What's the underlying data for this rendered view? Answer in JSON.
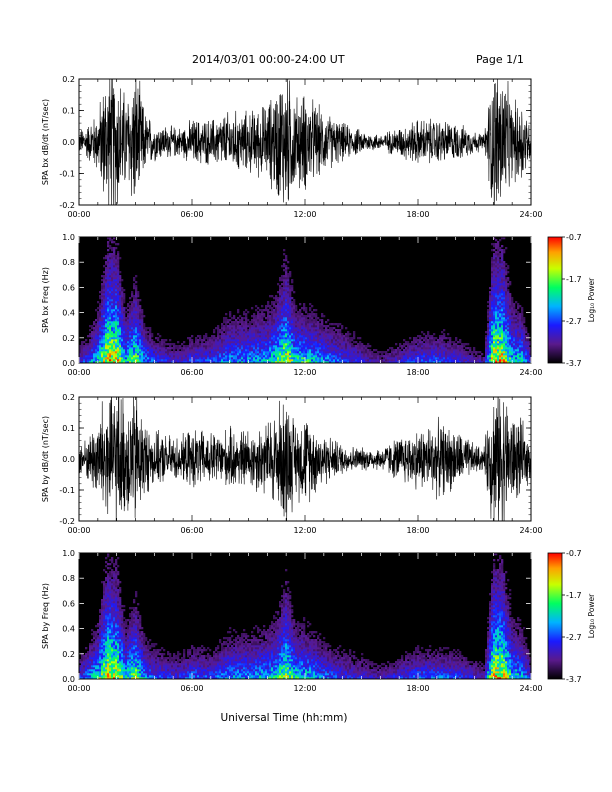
{
  "header": {
    "date_range": "2014/03/01   00:00-24:00 UT",
    "page": "Page 1/1"
  },
  "chart_data": [
    {
      "id": "bx-dbdt",
      "type": "line",
      "ylabel": "SPA bx dB/dt (nT/sec)",
      "xlabel": "",
      "xlim": [
        "00:00",
        "24:00"
      ],
      "ylim": [
        -0.2,
        0.2
      ],
      "x_ticks": [
        "00:00",
        "06:00",
        "12:00",
        "18:00",
        "24:00"
      ],
      "y_ticks": [
        "-0.2",
        "-0.1",
        "0.0",
        "0.1",
        "0.2"
      ],
      "amplitude_envelope": {
        "x_hours": [
          0,
          0.5,
          1.0,
          1.5,
          2.0,
          2.5,
          3.0,
          3.5,
          4.0,
          5.0,
          5.5,
          6.0,
          7.0,
          8.0,
          9.0,
          10.0,
          10.5,
          11.0,
          11.5,
          12.0,
          13.0,
          14.0,
          15.0,
          16.0,
          17.0,
          18.0,
          19.0,
          20.0,
          21.0,
          21.5,
          22.0,
          22.5,
          23.0,
          23.5,
          24.0
        ],
        "amplitude": [
          0.03,
          0.05,
          0.08,
          0.2,
          0.2,
          0.12,
          0.2,
          0.08,
          0.05,
          0.04,
          0.04,
          0.06,
          0.06,
          0.08,
          0.08,
          0.1,
          0.15,
          0.2,
          0.12,
          0.13,
          0.08,
          0.05,
          0.03,
          0.02,
          0.04,
          0.06,
          0.06,
          0.05,
          0.03,
          0.02,
          0.2,
          0.2,
          0.1,
          0.12,
          0.04
        ]
      }
    },
    {
      "id": "bx-spec",
      "type": "heatmap",
      "ylabel": "SPA bx Freq (Hz)",
      "xlabel": "",
      "xlim": [
        "00:00",
        "24:00"
      ],
      "ylim": [
        0,
        1.0
      ],
      "x_ticks": [
        "00:00",
        "06:00",
        "12:00",
        "18:00",
        "24:00"
      ],
      "y_ticks": [
        "0.0",
        "0.2",
        "0.4",
        "0.6",
        "0.8",
        "1.0"
      ],
      "colorbar": {
        "label": "Log₁₀ Power",
        "range": [
          -3.7,
          -0.7
        ],
        "ticks": [
          "-0.7",
          "-1.7",
          "-2.7",
          "-3.7"
        ]
      },
      "activity_profile": {
        "x_hours": [
          0,
          0.5,
          1.0,
          1.5,
          2.0,
          2.5,
          3.0,
          3.5,
          4.0,
          5.0,
          5.5,
          6.0,
          7.0,
          8.0,
          9.0,
          10.0,
          10.5,
          11.0,
          11.5,
          12.0,
          13.0,
          14.0,
          15.0,
          16.0,
          17.0,
          18.0,
          19.0,
          20.0,
          21.0,
          21.5,
          22.0,
          22.5,
          23.0,
          23.5,
          24.0
        ],
        "intensity": [
          0.3,
          0.45,
          0.6,
          0.95,
          0.95,
          0.6,
          0.8,
          0.5,
          0.4,
          0.3,
          0.3,
          0.4,
          0.4,
          0.5,
          0.5,
          0.55,
          0.7,
          0.85,
          0.65,
          0.65,
          0.5,
          0.4,
          0.3,
          0.2,
          0.3,
          0.4,
          0.4,
          0.35,
          0.25,
          0.2,
          0.95,
          0.95,
          0.6,
          0.6,
          0.3
        ],
        "max_freq_hz": [
          0.2,
          0.3,
          0.5,
          1.0,
          1.0,
          0.5,
          0.7,
          0.4,
          0.3,
          0.25,
          0.25,
          0.3,
          0.3,
          0.5,
          0.5,
          0.55,
          0.6,
          0.9,
          0.5,
          0.5,
          0.45,
          0.4,
          0.3,
          0.2,
          0.25,
          0.3,
          0.35,
          0.3,
          0.2,
          0.2,
          1.0,
          1.0,
          0.6,
          0.5,
          0.3
        ]
      }
    },
    {
      "id": "by-dbdt",
      "type": "line",
      "ylabel": "SPA by dB/dt (nT/sec)",
      "xlabel": "",
      "xlim": [
        "00:00",
        "24:00"
      ],
      "ylim": [
        -0.2,
        0.2
      ],
      "x_ticks": [
        "00:00",
        "06:00",
        "12:00",
        "18:00",
        "24:00"
      ],
      "y_ticks": [
        "-0.2",
        "-0.1",
        "0.0",
        "0.1",
        "0.2"
      ],
      "amplitude_envelope": {
        "x_hours": [
          0,
          0.5,
          1.0,
          1.5,
          2.0,
          2.5,
          3.0,
          3.5,
          4.0,
          5.0,
          5.5,
          6.0,
          7.0,
          8.0,
          9.0,
          10.0,
          10.5,
          11.0,
          11.5,
          12.0,
          13.0,
          14.0,
          15.0,
          16.0,
          17.0,
          18.0,
          19.0,
          20.0,
          21.0,
          21.5,
          22.0,
          22.5,
          23.0,
          23.5,
          24.0
        ],
        "amplitude": [
          0.04,
          0.06,
          0.12,
          0.2,
          0.2,
          0.15,
          0.2,
          0.1,
          0.07,
          0.06,
          0.06,
          0.08,
          0.07,
          0.08,
          0.08,
          0.1,
          0.14,
          0.18,
          0.1,
          0.12,
          0.07,
          0.04,
          0.03,
          0.03,
          0.06,
          0.08,
          0.1,
          0.08,
          0.04,
          0.03,
          0.2,
          0.2,
          0.12,
          0.1,
          0.05
        ]
      }
    },
    {
      "id": "by-spec",
      "type": "heatmap",
      "ylabel": "SPA by Freq (Hz)",
      "xlabel": "Universal Time (hh:mm)",
      "xlim": [
        "00:00",
        "24:00"
      ],
      "ylim": [
        0,
        1.0
      ],
      "x_ticks": [
        "00:00",
        "06:00",
        "12:00",
        "18:00",
        "24:00"
      ],
      "y_ticks": [
        "0.0",
        "0.2",
        "0.4",
        "0.6",
        "0.8",
        "1.0"
      ],
      "colorbar": {
        "label": "Log₁₀ Power",
        "range": [
          -3.7,
          -0.7
        ],
        "ticks": [
          "-0.7",
          "-1.7",
          "-2.7",
          "-3.7"
        ]
      },
      "activity_profile": {
        "x_hours": [
          0,
          0.5,
          1.0,
          1.5,
          2.0,
          2.5,
          3.0,
          3.5,
          4.0,
          5.0,
          5.5,
          6.0,
          7.0,
          8.0,
          9.0,
          10.0,
          10.5,
          11.0,
          11.5,
          12.0,
          13.0,
          14.0,
          15.0,
          16.0,
          17.0,
          18.0,
          19.0,
          20.0,
          21.0,
          21.5,
          22.0,
          22.5,
          23.0,
          23.5,
          24.0
        ],
        "intensity": [
          0.35,
          0.5,
          0.65,
          0.95,
          0.9,
          0.6,
          0.8,
          0.5,
          0.4,
          0.35,
          0.35,
          0.45,
          0.4,
          0.5,
          0.5,
          0.55,
          0.65,
          0.8,
          0.6,
          0.6,
          0.45,
          0.35,
          0.3,
          0.25,
          0.35,
          0.45,
          0.45,
          0.4,
          0.3,
          0.25,
          0.95,
          0.95,
          0.6,
          0.55,
          0.3
        ],
        "max_freq_hz": [
          0.25,
          0.35,
          0.5,
          1.0,
          0.95,
          0.5,
          0.7,
          0.4,
          0.35,
          0.3,
          0.3,
          0.35,
          0.3,
          0.45,
          0.45,
          0.5,
          0.55,
          0.85,
          0.5,
          0.5,
          0.4,
          0.35,
          0.3,
          0.2,
          0.25,
          0.3,
          0.3,
          0.3,
          0.25,
          0.2,
          1.0,
          1.0,
          0.6,
          0.5,
          0.3
        ]
      }
    }
  ]
}
